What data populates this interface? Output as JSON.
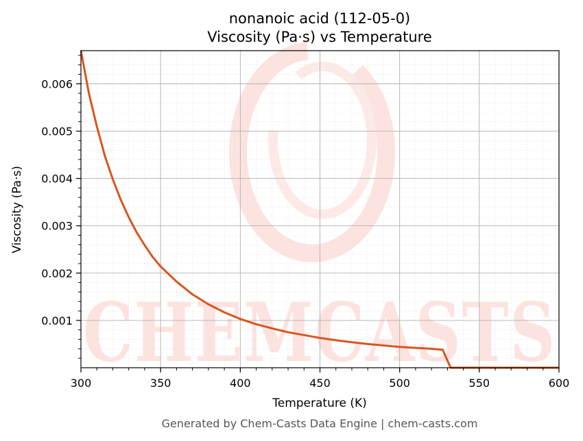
{
  "chart_data": {
    "type": "line",
    "title_line1": "nonanoic acid (112-05-0)",
    "title_line2": "Viscosity (Pa·s) vs Temperature",
    "xlabel": "Temperature (K)",
    "ylabel": "Viscosity (Pa·s)",
    "xlim": [
      300,
      600
    ],
    "ylim": [
      0,
      0.0067
    ],
    "x_ticks": [
      300,
      350,
      400,
      450,
      500,
      550,
      600
    ],
    "y_ticks": [
      0.001,
      0.002,
      0.003,
      0.004,
      0.005,
      0.006
    ],
    "y_tick_labels": [
      "0.001",
      "0.002",
      "0.003",
      "0.004",
      "0.005",
      "0.006"
    ],
    "grid": true,
    "line_color": "#d9541e",
    "series": [
      {
        "x": [
          300,
          305,
          310,
          315,
          320,
          325,
          330,
          335,
          340,
          345,
          350,
          360,
          370,
          380,
          390,
          400,
          410,
          420,
          430,
          440,
          450,
          460,
          470,
          480,
          490,
          500,
          510,
          520,
          527,
          532,
          540,
          560,
          580,
          600
        ],
        "values": [
          0.0067,
          0.0058,
          0.0051,
          0.00448,
          0.00398,
          0.00355,
          0.00318,
          0.00286,
          0.00259,
          0.00234,
          0.00214,
          0.00182,
          0.00155,
          0.00134,
          0.00117,
          0.00103,
          0.00092,
          0.00083,
          0.00075,
          0.00069,
          0.00063,
          0.00058,
          0.00054,
          0.0005,
          0.00047,
          0.00044,
          0.00042,
          0.0004,
          0.00038,
          0.0,
          0.0,
          0.0,
          0.0,
          0.0
        ]
      }
    ]
  },
  "watermark": {
    "text": "CHEMCASTS",
    "color": "#fde0dc"
  },
  "footer": "Generated by Chem-Casts Data Engine | chem-casts.com"
}
